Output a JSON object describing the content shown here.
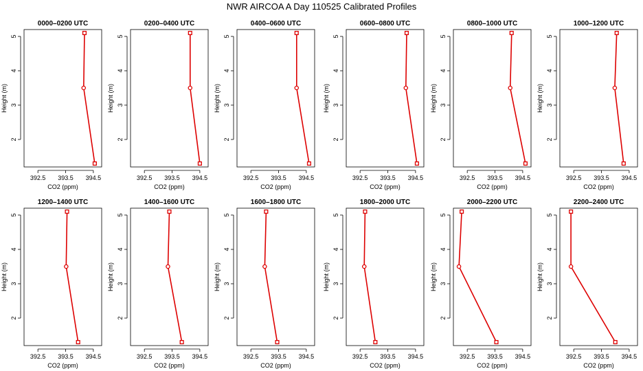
{
  "title": "NWR AIRCOA A  Day 110525  Calibrated Profiles",
  "colors": {
    "series": "#dd0000",
    "axis": "#000000"
  },
  "chart_data": [
    {
      "type": "line",
      "title": "0000–0200 UTC",
      "xlabel": "CO2 (ppm)",
      "ylabel": "Height (m)",
      "xlim": [
        392,
        394.8
      ],
      "ylim": [
        1.2,
        5.2
      ],
      "xticks": [
        "392.5",
        "393.5",
        "394.5"
      ],
      "yticks": [
        "2",
        "3",
        "4",
        "5"
      ],
      "x": [
        394.18,
        394.15,
        394.55
      ],
      "y": [
        5.1,
        3.5,
        1.3
      ]
    },
    {
      "type": "line",
      "title": "0200–0400 UTC",
      "xlabel": "CO2 (ppm)",
      "ylabel": "Height (m)",
      "xlim": [
        392,
        394.8
      ],
      "ylim": [
        1.2,
        5.2
      ],
      "xticks": [
        "392.5",
        "393.5",
        "394.5"
      ],
      "yticks": [
        "2",
        "3",
        "4",
        "5"
      ],
      "x": [
        394.15,
        394.15,
        394.5
      ],
      "y": [
        5.1,
        3.5,
        1.3
      ]
    },
    {
      "type": "line",
      "title": "0400–0600 UTC",
      "xlabel": "CO2 (ppm)",
      "ylabel": "Height (m)",
      "xlim": [
        392,
        394.8
      ],
      "ylim": [
        1.2,
        5.2
      ],
      "xticks": [
        "392.5",
        "393.5",
        "394.5"
      ],
      "yticks": [
        "2",
        "3",
        "4",
        "5"
      ],
      "x": [
        394.15,
        394.15,
        394.6
      ],
      "y": [
        5.1,
        3.5,
        1.3
      ]
    },
    {
      "type": "line",
      "title": "0600–0800 UTC",
      "xlabel": "CO2 (ppm)",
      "ylabel": "Height (m)",
      "xlim": [
        392,
        394.8
      ],
      "ylim": [
        1.2,
        5.2
      ],
      "xticks": [
        "392.5",
        "393.5",
        "394.5"
      ],
      "yticks": [
        "2",
        "3",
        "4",
        "5"
      ],
      "x": [
        394.18,
        394.15,
        394.55
      ],
      "y": [
        5.1,
        3.5,
        1.3
      ]
    },
    {
      "type": "line",
      "title": "0800–1000 UTC",
      "xlabel": "CO2 (ppm)",
      "ylabel": "Height (m)",
      "xlim": [
        392,
        394.8
      ],
      "ylim": [
        1.2,
        5.2
      ],
      "xticks": [
        "392.5",
        "393.5",
        "394.5"
      ],
      "yticks": [
        "2",
        "3",
        "4",
        "5"
      ],
      "x": [
        394.1,
        394.05,
        394.6
      ],
      "y": [
        5.1,
        3.5,
        1.3
      ]
    },
    {
      "type": "line",
      "title": "1000–1200 UTC",
      "xlabel": "CO2 (ppm)",
      "ylabel": "Height (m)",
      "xlim": [
        392,
        394.8
      ],
      "ylim": [
        1.2,
        5.2
      ],
      "xticks": [
        "392.5",
        "393.5",
        "394.5"
      ],
      "yticks": [
        "2",
        "3",
        "4",
        "5"
      ],
      "x": [
        394.05,
        393.98,
        394.3
      ],
      "y": [
        5.1,
        3.5,
        1.3
      ]
    },
    {
      "type": "line",
      "title": "1200–1400 UTC",
      "xlabel": "CO2 (ppm)",
      "ylabel": "Height (m)",
      "xlim": [
        392,
        394.8
      ],
      "ylim": [
        1.2,
        5.2
      ],
      "xticks": [
        "392.5",
        "393.5",
        "394.5"
      ],
      "yticks": [
        "2",
        "3",
        "4",
        "5"
      ],
      "x": [
        393.55,
        393.52,
        393.95
      ],
      "y": [
        5.1,
        3.5,
        1.3
      ]
    },
    {
      "type": "line",
      "title": "1400–1600 UTC",
      "xlabel": "CO2 (ppm)",
      "ylabel": "Height (m)",
      "xlim": [
        392,
        394.8
      ],
      "ylim": [
        1.2,
        5.2
      ],
      "xticks": [
        "392.5",
        "393.5",
        "394.5"
      ],
      "yticks": [
        "2",
        "3",
        "4",
        "5"
      ],
      "x": [
        393.4,
        393.35,
        393.85
      ],
      "y": [
        5.1,
        3.5,
        1.3
      ]
    },
    {
      "type": "line",
      "title": "1600–1800 UTC",
      "xlabel": "CO2 (ppm)",
      "ylabel": "Height (m)",
      "xlim": [
        392,
        394.8
      ],
      "ylim": [
        1.2,
        5.2
      ],
      "xticks": [
        "392.5",
        "393.5",
        "394.5"
      ],
      "yticks": [
        "2",
        "3",
        "4",
        "5"
      ],
      "x": [
        393.05,
        393.0,
        393.45
      ],
      "y": [
        5.1,
        3.5,
        1.3
      ]
    },
    {
      "type": "line",
      "title": "1800–2000 UTC",
      "xlabel": "CO2 (ppm)",
      "ylabel": "Height (m)",
      "xlim": [
        392,
        394.8
      ],
      "ylim": [
        1.2,
        5.2
      ],
      "xticks": [
        "392.5",
        "393.5",
        "394.5"
      ],
      "yticks": [
        "2",
        "3",
        "4",
        "5"
      ],
      "x": [
        392.68,
        392.65,
        393.05
      ],
      "y": [
        5.1,
        3.5,
        1.3
      ]
    },
    {
      "type": "line",
      "title": "2000–2200 UTC",
      "xlabel": "CO2 (ppm)",
      "ylabel": "Height (m)",
      "xlim": [
        392,
        394.8
      ],
      "ylim": [
        1.2,
        5.2
      ],
      "xticks": [
        "392.5",
        "393.5",
        "394.5"
      ],
      "yticks": [
        "2",
        "3",
        "4",
        "5"
      ],
      "x": [
        392.3,
        392.2,
        393.55
      ],
      "y": [
        5.1,
        3.5,
        1.3
      ]
    },
    {
      "type": "line",
      "title": "2200–2400 UTC",
      "xlabel": "CO2 (ppm)",
      "ylabel": "Height (m)",
      "xlim": [
        392,
        394.8
      ],
      "ylim": [
        1.2,
        5.2
      ],
      "xticks": [
        "392.5",
        "393.5",
        "394.5"
      ],
      "yticks": [
        "2",
        "3",
        "4",
        "5"
      ],
      "x": [
        392.4,
        392.4,
        394.0
      ],
      "y": [
        5.1,
        3.5,
        1.3
      ]
    }
  ]
}
